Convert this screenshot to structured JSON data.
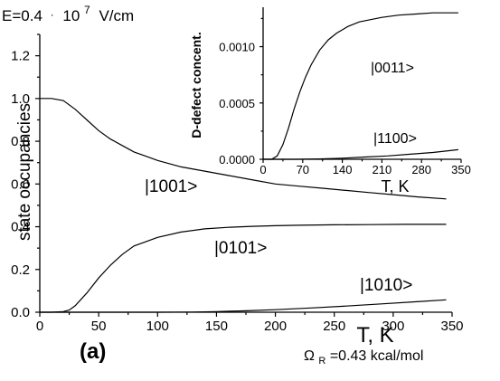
{
  "header_text": {
    "field_prefix": "E=0.4",
    "field_dot": "·",
    "field_mantissa": "10",
    "field_exp": "7",
    "field_unit": "V/cm"
  },
  "panel_label": "(a)",
  "omega": {
    "symbol": "Ω",
    "sub": "R",
    "text": "=0.43 kcal/mol"
  },
  "chart_data": [
    {
      "type": "line",
      "xlabel": "T, K",
      "ylabel": "state occupancies",
      "xlim": [
        0,
        350
      ],
      "ylim": [
        0,
        1.3
      ],
      "xticks": [
        0,
        50,
        100,
        150,
        200,
        250,
        300,
        350
      ],
      "xtick_labels": [
        "0",
        "50",
        "100",
        "150",
        "200",
        "250",
        "300",
        "350"
      ],
      "yticks": [
        0.0,
        0.2,
        0.4,
        0.6,
        0.8,
        1.0,
        1.2
      ],
      "ytick_labels": [
        "0.0",
        "0.2",
        "0.4",
        "0.6",
        "0.8",
        "1.0",
        "1.2"
      ],
      "grid": false,
      "series": [
        {
          "name": "|1001>",
          "x": [
            0,
            10,
            20,
            30,
            40,
            50,
            60,
            70,
            80,
            90,
            100,
            120,
            140,
            160,
            180,
            200,
            220,
            240,
            260,
            280,
            300,
            320,
            345
          ],
          "values": [
            1.0,
            1.0,
            0.99,
            0.95,
            0.9,
            0.85,
            0.81,
            0.78,
            0.75,
            0.73,
            0.71,
            0.68,
            0.66,
            0.64,
            0.62,
            0.6,
            0.59,
            0.58,
            0.57,
            0.56,
            0.55,
            0.54,
            0.53
          ]
        },
        {
          "name": "|0101>",
          "x": [
            0,
            10,
            20,
            25,
            30,
            40,
            50,
            60,
            70,
            80,
            90,
            100,
            120,
            140,
            160,
            180,
            200,
            220,
            250,
            280,
            310,
            345
          ],
          "values": [
            0.0,
            0.0,
            0.003,
            0.01,
            0.03,
            0.09,
            0.16,
            0.22,
            0.27,
            0.31,
            0.33,
            0.35,
            0.375,
            0.39,
            0.397,
            0.402,
            0.405,
            0.407,
            0.409,
            0.41,
            0.411,
            0.411
          ]
        },
        {
          "name": "|1010>",
          "x": [
            0,
            50,
            100,
            130,
            150,
            170,
            200,
            230,
            260,
            290,
            320,
            345
          ],
          "values": [
            0.0,
            0.0,
            0.0,
            0.001,
            0.003,
            0.006,
            0.012,
            0.02,
            0.029,
            0.039,
            0.049,
            0.058
          ]
        }
      ]
    },
    {
      "type": "line",
      "xlabel": "T, K",
      "ylabel": "D-defect concent.",
      "xlim": [
        0,
        350
      ],
      "ylim": [
        0,
        0.00135
      ],
      "xticks": [
        0,
        70,
        140,
        210,
        280,
        350
      ],
      "xtick_labels": [
        "0",
        "70",
        "140",
        "210",
        "280",
        "350"
      ],
      "yticks": [
        0.0,
        0.0005,
        0.001
      ],
      "ytick_labels": [
        "0.0000",
        "0.0005",
        "0.0010"
      ],
      "grid": false,
      "series": [
        {
          "name": "|0011>",
          "x": [
            0,
            15,
            25,
            35,
            45,
            55,
            65,
            75,
            85,
            100,
            115,
            130,
            150,
            170,
            190,
            210,
            240,
            270,
            300,
            345
          ],
          "values": [
            0.0,
            0.0,
            3e-05,
            0.00013,
            0.00028,
            0.00045,
            0.0006,
            0.00073,
            0.00084,
            0.00097,
            0.00106,
            0.00112,
            0.00118,
            0.00122,
            0.00124,
            0.00126,
            0.00128,
            0.00129,
            0.0013,
            0.0013
          ]
        },
        {
          "name": "|1100>",
          "x": [
            0,
            60,
            100,
            140,
            180,
            220,
            260,
            300,
            345
          ],
          "values": [
            0.0,
            0.0,
            3e-06,
            1e-05,
            2e-05,
            3e-05,
            4.5e-05,
            6e-05,
            8.5e-05
          ]
        }
      ]
    }
  ]
}
